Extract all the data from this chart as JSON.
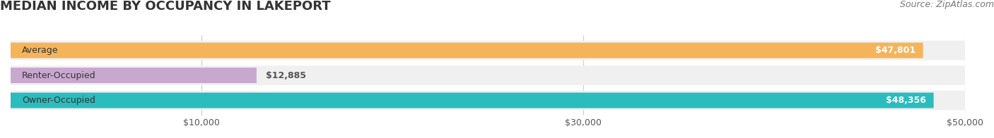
{
  "title": "MEDIAN INCOME BY OCCUPANCY IN LAKEPORT",
  "source": "Source: ZipAtlas.com",
  "categories": [
    "Owner-Occupied",
    "Renter-Occupied",
    "Average"
  ],
  "values": [
    48356,
    12885,
    47801
  ],
  "bar_colors": [
    "#2bbcbe",
    "#c9a8d0",
    "#f5b45a"
  ],
  "bar_bg_color": "#f0f0f0",
  "label_color_inside": "#ffffff",
  "label_color_outside": "#555555",
  "xlim": [
    0,
    50000
  ],
  "xticks": [
    10000,
    30000,
    50000
  ],
  "xtick_labels": [
    "$10,000",
    "$30,000",
    "$50,000"
  ],
  "title_fontsize": 13,
  "source_fontsize": 9,
  "bar_label_fontsize": 9,
  "tick_fontsize": 9,
  "category_fontsize": 9,
  "figsize": [
    14.06,
    1.96
  ],
  "dpi": 100,
  "background_color": "#ffffff",
  "grid_color": "#cccccc"
}
